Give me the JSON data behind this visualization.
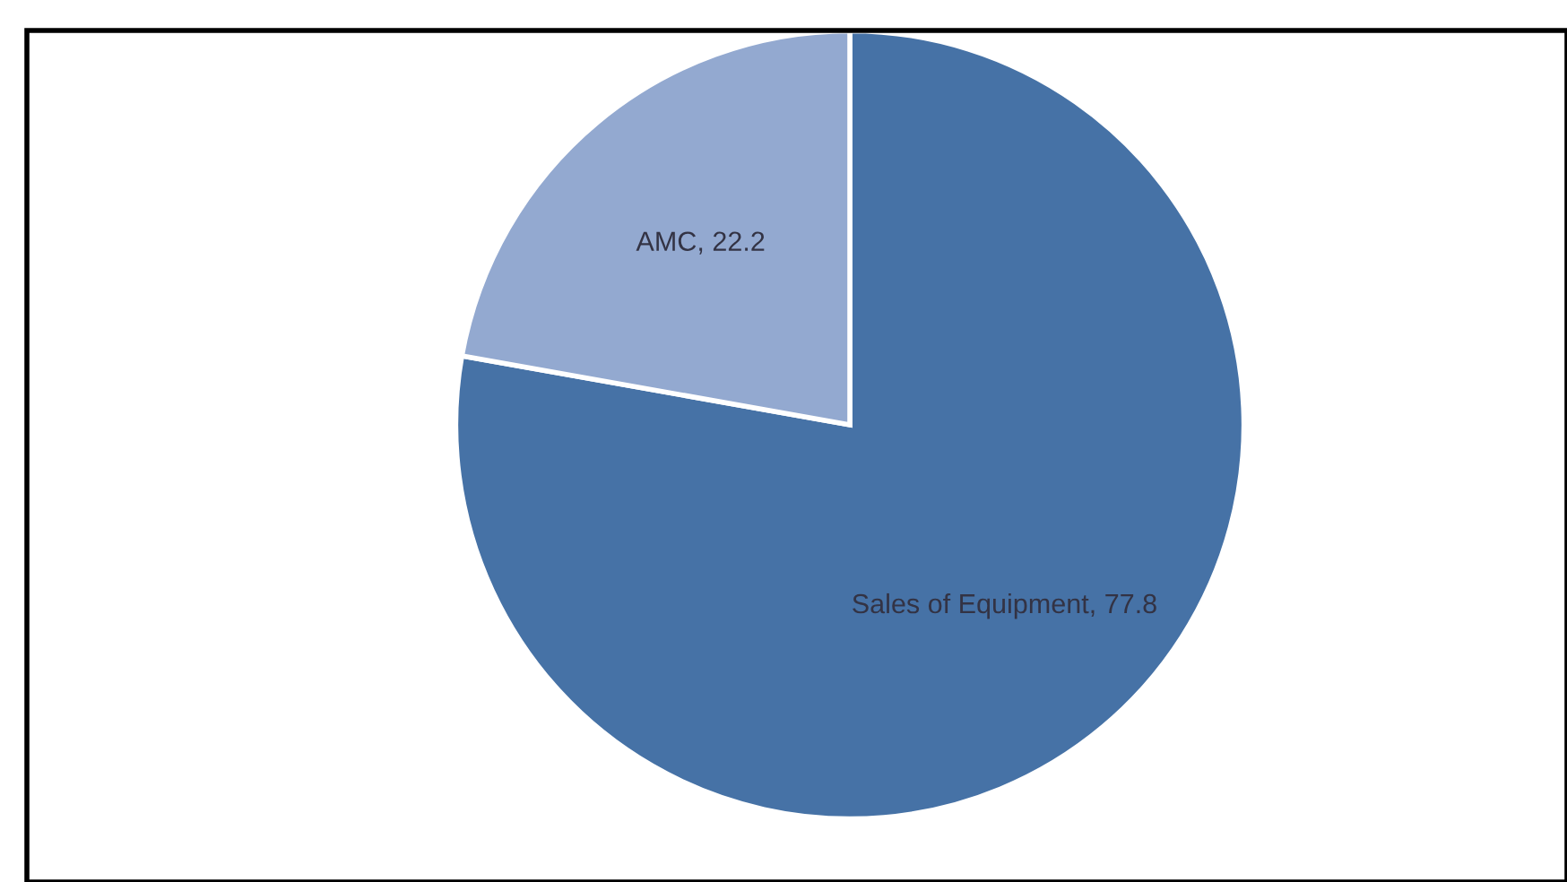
{
  "chart_data": {
    "type": "pie",
    "categories": [
      "Sales of Equipment",
      "AMC"
    ],
    "values": [
      77.8,
      22.2
    ],
    "value_labels": [
      ", 77.8",
      ", 22.2"
    ],
    "colors": [
      "#4672a6",
      "#93a9d0"
    ],
    "legend": false
  }
}
